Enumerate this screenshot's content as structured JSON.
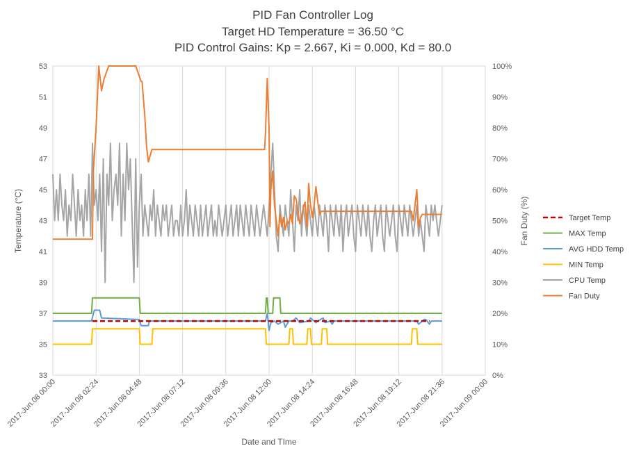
{
  "chart_data": {
    "type": "line",
    "title": [
      "PID Fan Controller Log",
      "Target HD Temperature = 36.50 °C",
      "PID Control Gains: Kp =  2.667, Ki =  0.000, Kd = 80.0"
    ],
    "xlabel": "Date and TIme",
    "ylabel": "Temperature (°C)",
    "y2label": "Fan Duty (%)",
    "xlim": [
      0,
      24
    ],
    "ylim": [
      33,
      53
    ],
    "y2lim": [
      0,
      100
    ],
    "grid": "x-vertical",
    "legend_position": "right",
    "x_ticks": [
      {
        "x": 0,
        "label": "2017-Jun.08 00:00"
      },
      {
        "x": 2.4,
        "label": "2017-Jun.08 02:24"
      },
      {
        "x": 4.8,
        "label": "2017-Jun.08 04:48"
      },
      {
        "x": 7.2,
        "label": "2017-Jun.08 07:12"
      },
      {
        "x": 9.6,
        "label": "2017-Jun.08 09:36"
      },
      {
        "x": 12.0,
        "label": "2017-Jun.08 12:00"
      },
      {
        "x": 14.4,
        "label": "2017-Jun.08 14:24"
      },
      {
        "x": 16.8,
        "label": "2017-Jun.08 16:48"
      },
      {
        "x": 19.2,
        "label": "2017-Jun.08 19:12"
      },
      {
        "x": 21.6,
        "label": "2017-Jun.08 21:36"
      },
      {
        "x": 24.0,
        "label": "2017-Jun.09 00:00"
      }
    ],
    "y_ticks": [
      "33",
      "35",
      "37",
      "39",
      "41",
      "43",
      "45",
      "47",
      "49",
      "51",
      "53"
    ],
    "y2_ticks": [
      "0%",
      "10%",
      "20%",
      "30%",
      "40%",
      "50%",
      "60%",
      "70%",
      "80%",
      "90%",
      "100%"
    ],
    "series": [
      {
        "name": "Target Temp",
        "axis": "left",
        "color": "#c00000",
        "dash": true,
        "x": [
          2.2,
          4.8,
          12.3,
          20.9
        ],
        "y": [
          36.5,
          36.5,
          36.5,
          36.5
        ]
      },
      {
        "name": "MAX Temp",
        "axis": "left",
        "color": "#70ad47",
        "x": [
          0,
          2.15,
          2.2,
          4.8,
          4.85,
          11.8,
          11.85,
          11.9,
          11.95,
          12.2,
          12.25,
          12.6,
          12.65,
          21.6
        ],
        "y": [
          37,
          37,
          38,
          38,
          37,
          37,
          38,
          38,
          37,
          37,
          38,
          38,
          37,
          37
        ]
      },
      {
        "name": "AVG HDD Temp",
        "axis": "left",
        "color": "#5b9bd5",
        "x": [
          0,
          2.15,
          2.3,
          2.6,
          2.7,
          4.8,
          4.9,
          5.3,
          5.35,
          11.8,
          11.9,
          12.0,
          12.1,
          12.3,
          12.5,
          12.8,
          12.9,
          13.1,
          13.3,
          13.5,
          13.7,
          14.2,
          14.3,
          14.6,
          14.7,
          15.0,
          15.1,
          15.4,
          15.5,
          15.6,
          20.2,
          20.3,
          20.6,
          20.7,
          20.9,
          21.0,
          21.6
        ],
        "y": [
          36.5,
          36.5,
          37.2,
          37.2,
          36.7,
          36.6,
          36.2,
          36.2,
          36.5,
          36.5,
          37.0,
          35.9,
          36.4,
          36.5,
          36.3,
          36.5,
          36.1,
          36.5,
          36.5,
          36.7,
          36.4,
          36.5,
          36.7,
          36.4,
          36.5,
          36.7,
          36.4,
          36.5,
          36.3,
          36.5,
          36.5,
          36.3,
          36.6,
          36.6,
          36.3,
          36.5,
          36.5
        ]
      },
      {
        "name": "MIN Temp",
        "axis": "left",
        "color": "#ffc000",
        "x": [
          0,
          2.15,
          2.2,
          4.8,
          4.85,
          5.5,
          5.55,
          11.8,
          11.85,
          13.1,
          13.15,
          13.3,
          13.35,
          14.1,
          14.15,
          14.3,
          14.35,
          14.9,
          14.95,
          15.2,
          15.25,
          19.9,
          19.95,
          20.2,
          20.25,
          21.6
        ],
        "y": [
          35,
          35,
          36,
          36,
          35,
          35,
          36,
          36,
          35,
          35,
          36,
          36,
          35,
          35,
          36,
          36,
          35,
          35,
          36,
          36,
          35,
          35,
          36,
          36,
          35,
          35
        ]
      },
      {
        "name": "CPU Temp",
        "axis": "left",
        "color": "#a5a5a5",
        "x": [
          0.0,
          0.1,
          0.2,
          0.3,
          0.4,
          0.5,
          0.6,
          0.7,
          0.8,
          0.9,
          1.0,
          1.1,
          1.2,
          1.3,
          1.4,
          1.5,
          1.6,
          1.7,
          1.8,
          1.9,
          2.0,
          2.1,
          2.2,
          2.3,
          2.4,
          2.5,
          2.6,
          2.7,
          2.8,
          2.9,
          3.0,
          3.1,
          3.2,
          3.3,
          3.4,
          3.5,
          3.6,
          3.7,
          3.8,
          3.9,
          4.0,
          4.1,
          4.2,
          4.3,
          4.4,
          4.5,
          4.6,
          4.7,
          4.8,
          4.9,
          5.0,
          5.1,
          5.2,
          5.3,
          5.4,
          5.5,
          5.6,
          5.7,
          5.8,
          5.9,
          6.0,
          6.1,
          6.2,
          6.3,
          6.4,
          6.5,
          6.6,
          6.7,
          6.8,
          6.9,
          7.0,
          7.1,
          7.2,
          7.3,
          7.4,
          7.5,
          7.6,
          7.7,
          7.8,
          7.9,
          8.0,
          8.1,
          8.2,
          8.3,
          8.4,
          8.5,
          8.6,
          8.7,
          8.8,
          8.9,
          9.0,
          9.1,
          9.2,
          9.3,
          9.4,
          9.5,
          9.6,
          9.7,
          9.8,
          9.9,
          10.0,
          10.1,
          10.2,
          10.3,
          10.4,
          10.5,
          10.6,
          10.7,
          10.8,
          10.9,
          11.0,
          11.1,
          11.2,
          11.3,
          11.4,
          11.5,
          11.6,
          11.7,
          11.8,
          11.9,
          12.0,
          12.1,
          12.2,
          12.3,
          12.4,
          12.5,
          12.6,
          12.7,
          12.8,
          12.9,
          13.0,
          13.1,
          13.2,
          13.3,
          13.4,
          13.5,
          13.6,
          13.7,
          13.8,
          13.9,
          14.0,
          14.1,
          14.2,
          14.3,
          14.4,
          14.5,
          14.6,
          14.7,
          14.8,
          14.9,
          15.0,
          15.1,
          15.2,
          15.3,
          15.4,
          15.5,
          15.6,
          15.7,
          15.8,
          15.9,
          16.0,
          16.1,
          16.2,
          16.3,
          16.4,
          16.5,
          16.6,
          16.7,
          16.8,
          16.9,
          17.0,
          17.1,
          17.2,
          17.3,
          17.4,
          17.5,
          17.6,
          17.7,
          17.8,
          17.9,
          18.0,
          18.1,
          18.2,
          18.3,
          18.4,
          18.5,
          18.6,
          18.7,
          18.8,
          18.9,
          19.0,
          19.1,
          19.2,
          19.3,
          19.4,
          19.5,
          19.6,
          19.7,
          19.8,
          19.9,
          20.0,
          20.1,
          20.2,
          20.3,
          20.4,
          20.5,
          20.6,
          20.7,
          20.8,
          20.9,
          21.0,
          21.1,
          21.2,
          21.3,
          21.4,
          21.5,
          21.6
        ],
        "y": [
          46,
          43,
          45,
          43,
          46,
          44,
          43,
          45,
          42,
          44,
          43,
          46,
          44,
          42,
          45,
          43,
          44,
          42,
          45,
          43,
          46,
          42,
          48,
          44,
          45,
          43,
          46,
          41,
          47,
          39,
          46,
          44,
          48,
          43,
          45,
          46,
          44,
          48,
          42,
          46,
          43,
          48,
          45,
          47,
          43,
          39,
          47,
          40,
          44,
          46,
          42,
          44,
          43,
          42,
          44,
          43,
          45,
          42,
          44,
          43,
          42,
          44,
          43,
          44,
          42,
          43,
          44,
          42,
          43,
          43,
          42,
          44,
          42,
          43,
          45,
          42,
          44,
          43,
          42,
          44,
          43,
          42,
          44,
          42,
          43,
          44,
          42,
          43,
          44,
          42,
          43,
          42,
          44,
          43,
          42,
          43,
          44,
          42,
          43,
          44,
          42,
          43,
          44,
          42,
          44,
          43,
          42,
          44,
          43,
          42,
          44,
          43,
          42,
          44,
          43,
          42,
          43,
          44,
          43,
          42,
          44,
          46,
          48,
          45,
          42,
          41,
          44,
          43,
          42,
          44,
          43,
          42,
          45,
          43,
          41,
          44,
          43,
          45,
          42,
          44,
          43,
          42,
          44,
          43,
          42,
          44,
          43,
          42,
          44,
          43,
          42,
          44,
          43,
          41,
          44,
          43,
          42,
          44,
          43,
          42,
          44,
          41,
          43,
          44,
          42,
          43,
          44,
          42,
          41,
          44,
          43,
          42,
          44,
          43,
          42,
          44,
          42,
          41,
          43,
          44,
          42,
          43,
          44,
          42,
          41,
          44,
          43,
          42,
          43,
          44,
          42,
          41,
          44,
          43,
          42,
          44,
          43,
          42,
          44,
          43,
          42,
          43,
          44,
          42,
          43,
          42,
          41,
          44,
          43,
          42,
          44,
          43,
          44,
          43,
          42,
          43,
          44
        ]
      },
      {
        "name": "Fan Duty",
        "axis": "right",
        "color": "#ed7d31",
        "x": [
          0,
          2.2,
          2.25,
          2.4,
          2.55,
          2.7,
          2.85,
          3.1,
          3.5,
          4.6,
          4.9,
          4.95,
          5.1,
          5.2,
          5.3,
          5.5,
          5.6,
          11.75,
          11.8,
          11.9,
          12.0,
          12.05,
          12.1,
          12.2,
          12.3,
          12.4,
          12.5,
          12.6,
          12.7,
          12.8,
          12.9,
          13.0,
          13.1,
          13.2,
          13.3,
          13.4,
          13.5,
          13.7,
          13.8,
          13.9,
          14.0,
          14.1,
          14.2,
          14.3,
          14.4,
          14.5,
          14.6,
          14.7,
          14.8,
          14.9,
          15.0,
          15.2,
          15.3,
          15.4,
          19.9,
          20.0,
          20.1,
          20.2,
          20.3,
          20.4,
          20.5,
          20.6,
          21.6
        ],
        "y": [
          44,
          44,
          66,
          80,
          100,
          92,
          96,
          100,
          100,
          100,
          95,
          95,
          84,
          74,
          69,
          73,
          73,
          73,
          78,
          96,
          80,
          48,
          60,
          66,
          55,
          50,
          45,
          52,
          48,
          51,
          47,
          50,
          49,
          52,
          49,
          58,
          57,
          49,
          51,
          54,
          56,
          48,
          62,
          55,
          51,
          55,
          61,
          56,
          52,
          53,
          53,
          53,
          53,
          53,
          53,
          50,
          55,
          60,
          48,
          51,
          52,
          52,
          52
        ]
      }
    ]
  }
}
